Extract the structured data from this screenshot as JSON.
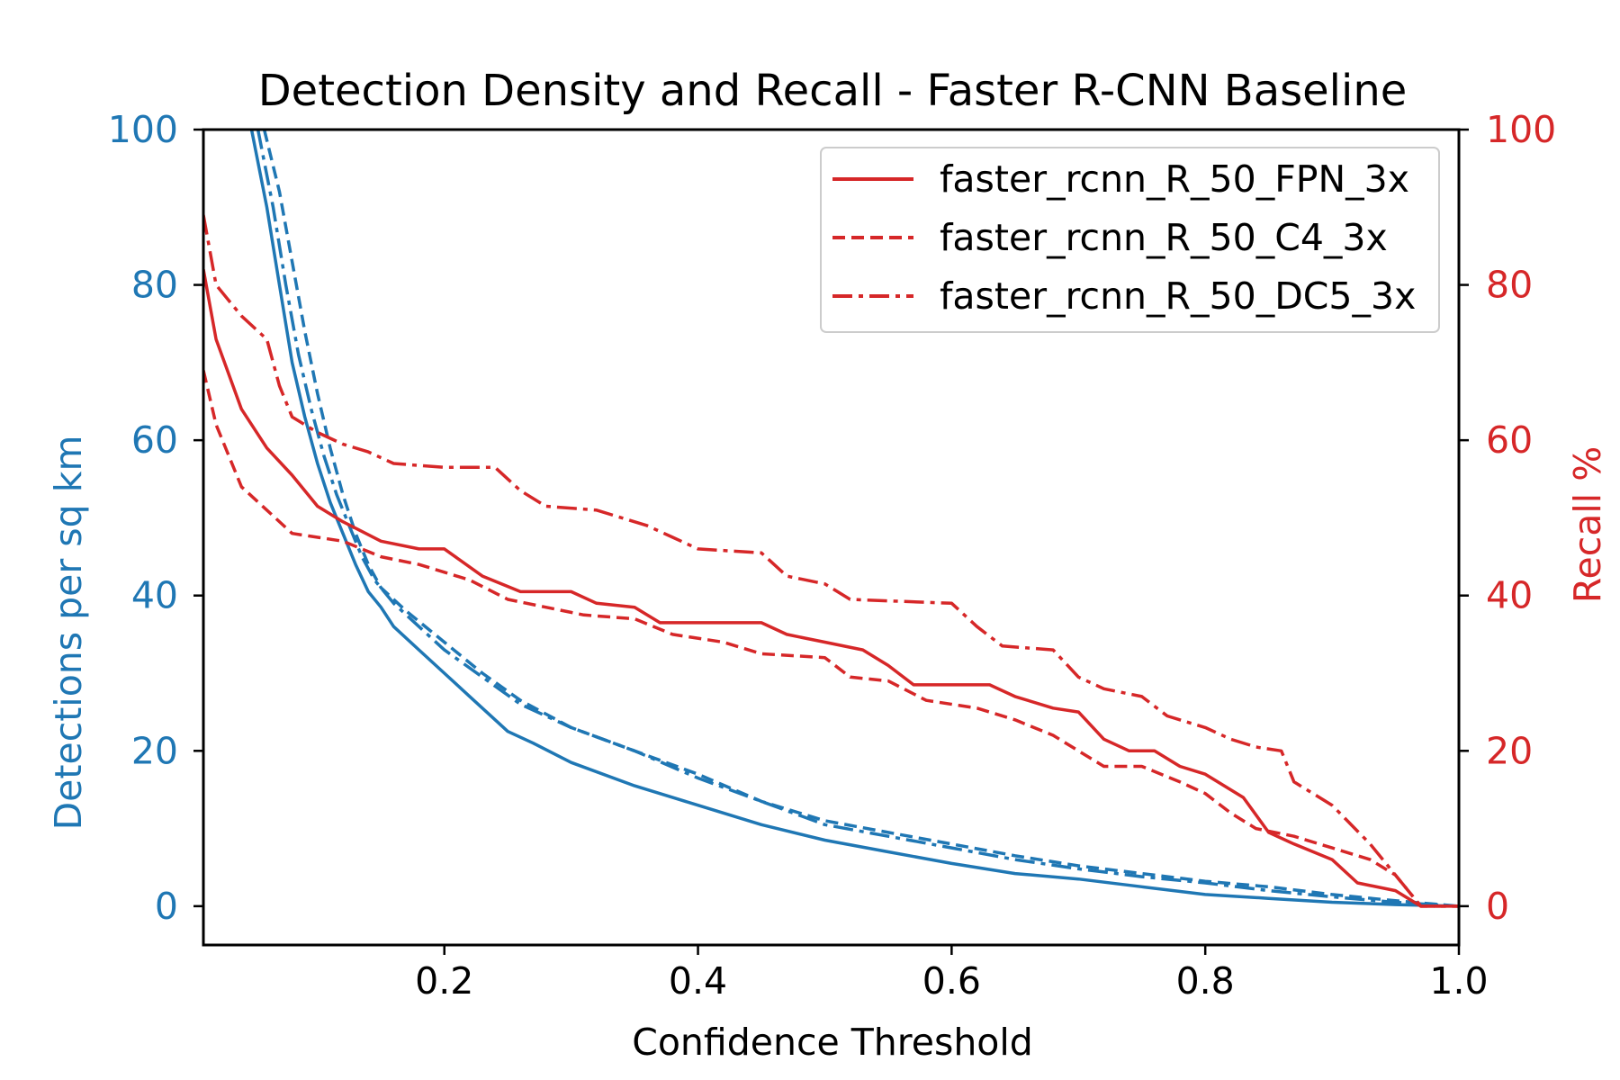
{
  "chart_data": {
    "type": "line",
    "title": "Detection Density and Recall - Faster R-CNN Baseline",
    "xlabel": "Confidence Threshold",
    "ylabel_left": "Detections per sq km",
    "ylabel_right": "Recall %",
    "xlim": [
      0.01,
      1.0
    ],
    "ylim_left": [
      -5,
      100
    ],
    "ylim_right": [
      -5,
      100
    ],
    "x_ticks": [
      0.2,
      0.4,
      0.6,
      0.8,
      1.0
    ],
    "x_tick_labels": [
      "0.2",
      "0.4",
      "0.6",
      "0.8",
      "1.0"
    ],
    "y_ticks_left": [
      0,
      20,
      40,
      60,
      80,
      100
    ],
    "y_tick_labels_left": [
      "0",
      "20",
      "40",
      "60",
      "80",
      "100"
    ],
    "y_ticks_right": [
      0,
      20,
      40,
      60,
      80,
      100
    ],
    "y_tick_labels_right": [
      "0",
      "20",
      "40",
      "60",
      "80",
      "100"
    ],
    "grid": false,
    "legend_position": "top-right",
    "colors": {
      "density": "#1f77b4",
      "recall": "#d62728"
    },
    "legend": [
      {
        "label": "faster_rcnn_R_50_FPN_3x",
        "style": "solid"
      },
      {
        "label": "faster_rcnn_R_50_C4_3x",
        "style": "dashed"
      },
      {
        "label": "faster_rcnn_R_50_DC5_3x",
        "style": "dashdot"
      }
    ],
    "series": [
      {
        "name": "faster_rcnn_R_50_FPN_3x density",
        "axis": "left",
        "color": "#1f77b4",
        "style": "solid",
        "points": [
          [
            0.048,
            100
          ],
          [
            0.06,
            90
          ],
          [
            0.07,
            80
          ],
          [
            0.08,
            70
          ],
          [
            0.09,
            63
          ],
          [
            0.1,
            57
          ],
          [
            0.11,
            52
          ],
          [
            0.12,
            48
          ],
          [
            0.13,
            44
          ],
          [
            0.14,
            40.5
          ],
          [
            0.15,
            38.5
          ],
          [
            0.16,
            36
          ],
          [
            0.18,
            33
          ],
          [
            0.2,
            30
          ],
          [
            0.22,
            27
          ],
          [
            0.25,
            22.5
          ],
          [
            0.27,
            21
          ],
          [
            0.3,
            18.5
          ],
          [
            0.35,
            15.5
          ],
          [
            0.4,
            13
          ],
          [
            0.45,
            10.5
          ],
          [
            0.5,
            8.5
          ],
          [
            0.55,
            7
          ],
          [
            0.6,
            5.5
          ],
          [
            0.65,
            4.2
          ],
          [
            0.7,
            3.5
          ],
          [
            0.75,
            2.5
          ],
          [
            0.8,
            1.5
          ],
          [
            0.85,
            1
          ],
          [
            0.9,
            0.5
          ],
          [
            0.95,
            0.2
          ],
          [
            1.0,
            0
          ]
        ]
      },
      {
        "name": "faster_rcnn_R_50_C4_3x density",
        "axis": "left",
        "color": "#1f77b4",
        "style": "dashed",
        "points": [
          [
            0.058,
            100
          ],
          [
            0.07,
            92
          ],
          [
            0.08,
            83
          ],
          [
            0.09,
            74
          ],
          [
            0.1,
            66
          ],
          [
            0.11,
            59
          ],
          [
            0.12,
            53
          ],
          [
            0.13,
            48
          ],
          [
            0.14,
            44
          ],
          [
            0.15,
            41
          ],
          [
            0.17,
            38
          ],
          [
            0.2,
            34
          ],
          [
            0.23,
            30
          ],
          [
            0.26,
            26.5
          ],
          [
            0.3,
            23
          ],
          [
            0.35,
            20
          ],
          [
            0.4,
            17
          ],
          [
            0.45,
            13.5
          ],
          [
            0.5,
            11
          ],
          [
            0.55,
            9.5
          ],
          [
            0.6,
            8
          ],
          [
            0.65,
            6.5
          ],
          [
            0.7,
            5.2
          ],
          [
            0.75,
            4.2
          ],
          [
            0.8,
            3.2
          ],
          [
            0.85,
            2.5
          ],
          [
            0.9,
            1.5
          ],
          [
            0.95,
            0.7
          ],
          [
            1.0,
            0
          ]
        ]
      },
      {
        "name": "faster_rcnn_R_50_DC5_3x density",
        "axis": "left",
        "color": "#1f77b4",
        "style": "dashdot",
        "points": [
          [
            0.053,
            100
          ],
          [
            0.065,
            90
          ],
          [
            0.075,
            80
          ],
          [
            0.085,
            71
          ],
          [
            0.095,
            64
          ],
          [
            0.105,
            58
          ],
          [
            0.115,
            53
          ],
          [
            0.125,
            49
          ],
          [
            0.135,
            45
          ],
          [
            0.145,
            42
          ],
          [
            0.16,
            39
          ],
          [
            0.18,
            36
          ],
          [
            0.2,
            33
          ],
          [
            0.23,
            29.5
          ],
          [
            0.26,
            26
          ],
          [
            0.3,
            23
          ],
          [
            0.35,
            20
          ],
          [
            0.4,
            16.5
          ],
          [
            0.45,
            13.5
          ],
          [
            0.5,
            10.5
          ],
          [
            0.55,
            9
          ],
          [
            0.6,
            7.5
          ],
          [
            0.65,
            6
          ],
          [
            0.7,
            4.8
          ],
          [
            0.75,
            3.8
          ],
          [
            0.8,
            3
          ],
          [
            0.85,
            2
          ],
          [
            0.9,
            1.2
          ],
          [
            0.95,
            0.5
          ],
          [
            1.0,
            0
          ]
        ]
      },
      {
        "name": "faster_rcnn_R_50_FPN_3x recall",
        "axis": "right",
        "color": "#d62728",
        "style": "solid",
        "points": [
          [
            0.01,
            82
          ],
          [
            0.02,
            73
          ],
          [
            0.04,
            64
          ],
          [
            0.06,
            59
          ],
          [
            0.08,
            55.5
          ],
          [
            0.1,
            51.5
          ],
          [
            0.12,
            49.5
          ],
          [
            0.15,
            47
          ],
          [
            0.18,
            46
          ],
          [
            0.2,
            46
          ],
          [
            0.23,
            42.5
          ],
          [
            0.26,
            40.5
          ],
          [
            0.3,
            40.5
          ],
          [
            0.32,
            39
          ],
          [
            0.35,
            38.5
          ],
          [
            0.37,
            36.5
          ],
          [
            0.45,
            36.5
          ],
          [
            0.47,
            35
          ],
          [
            0.5,
            34
          ],
          [
            0.53,
            33
          ],
          [
            0.55,
            31
          ],
          [
            0.57,
            28.5
          ],
          [
            0.6,
            28.5
          ],
          [
            0.63,
            28.5
          ],
          [
            0.65,
            27
          ],
          [
            0.68,
            25.5
          ],
          [
            0.7,
            25
          ],
          [
            0.72,
            21.5
          ],
          [
            0.74,
            20
          ],
          [
            0.76,
            20
          ],
          [
            0.78,
            18
          ],
          [
            0.8,
            17
          ],
          [
            0.83,
            14
          ],
          [
            0.85,
            9.5
          ],
          [
            0.87,
            8
          ],
          [
            0.9,
            6
          ],
          [
            0.92,
            3
          ],
          [
            0.95,
            2
          ],
          [
            0.97,
            0
          ],
          [
            1.0,
            0
          ]
        ]
      },
      {
        "name": "faster_rcnn_R_50_C4_3x recall",
        "axis": "right",
        "color": "#d62728",
        "style": "dashed",
        "points": [
          [
            0.01,
            69
          ],
          [
            0.02,
            62
          ],
          [
            0.04,
            54
          ],
          [
            0.06,
            51
          ],
          [
            0.08,
            48
          ],
          [
            0.12,
            47
          ],
          [
            0.15,
            45
          ],
          [
            0.18,
            44
          ],
          [
            0.2,
            43
          ],
          [
            0.22,
            42
          ],
          [
            0.25,
            39.5
          ],
          [
            0.28,
            38.5
          ],
          [
            0.31,
            37.5
          ],
          [
            0.35,
            37
          ],
          [
            0.38,
            35
          ],
          [
            0.42,
            34
          ],
          [
            0.45,
            32.5
          ],
          [
            0.5,
            32
          ],
          [
            0.52,
            29.5
          ],
          [
            0.55,
            29
          ],
          [
            0.58,
            26.5
          ],
          [
            0.62,
            25.5
          ],
          [
            0.65,
            24
          ],
          [
            0.68,
            22
          ],
          [
            0.7,
            20
          ],
          [
            0.72,
            18
          ],
          [
            0.75,
            18
          ],
          [
            0.78,
            16
          ],
          [
            0.8,
            14.5
          ],
          [
            0.82,
            12
          ],
          [
            0.84,
            10
          ],
          [
            0.87,
            9
          ],
          [
            0.9,
            7.5
          ],
          [
            0.93,
            6
          ],
          [
            0.95,
            4
          ],
          [
            0.97,
            0
          ],
          [
            1.0,
            0
          ]
        ]
      },
      {
        "name": "faster_rcnn_R_50_DC5_3x recall",
        "axis": "right",
        "color": "#d62728",
        "style": "dashdot",
        "points": [
          [
            0.01,
            89
          ],
          [
            0.02,
            80
          ],
          [
            0.04,
            76
          ],
          [
            0.06,
            73
          ],
          [
            0.07,
            67
          ],
          [
            0.08,
            63
          ],
          [
            0.1,
            61
          ],
          [
            0.12,
            59.5
          ],
          [
            0.14,
            58.5
          ],
          [
            0.16,
            57
          ],
          [
            0.2,
            56.5
          ],
          [
            0.24,
            56.5
          ],
          [
            0.26,
            53.5
          ],
          [
            0.28,
            51.5
          ],
          [
            0.32,
            51
          ],
          [
            0.36,
            49
          ],
          [
            0.38,
            47.5
          ],
          [
            0.4,
            46
          ],
          [
            0.45,
            45.5
          ],
          [
            0.47,
            42.5
          ],
          [
            0.5,
            41.5
          ],
          [
            0.52,
            39.5
          ],
          [
            0.6,
            39
          ],
          [
            0.62,
            36
          ],
          [
            0.64,
            33.5
          ],
          [
            0.68,
            33
          ],
          [
            0.7,
            29.5
          ],
          [
            0.72,
            28
          ],
          [
            0.75,
            27
          ],
          [
            0.77,
            24.5
          ],
          [
            0.8,
            23
          ],
          [
            0.82,
            21.5
          ],
          [
            0.84,
            20.5
          ],
          [
            0.86,
            20
          ],
          [
            0.87,
            16
          ],
          [
            0.88,
            15
          ],
          [
            0.9,
            13
          ],
          [
            0.93,
            8
          ],
          [
            0.95,
            4
          ],
          [
            0.97,
            0
          ],
          [
            1.0,
            0
          ]
        ]
      }
    ]
  }
}
